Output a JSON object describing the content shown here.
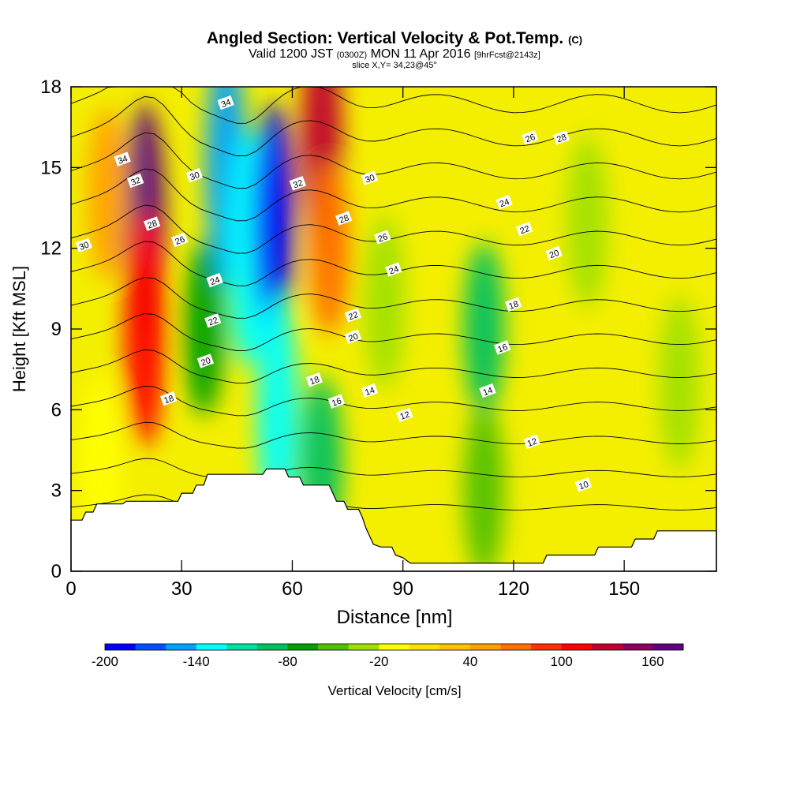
{
  "header": {
    "title": "Angled Section: Vertical Velocity & Pot.Temp.",
    "title_suffix": "(C)",
    "valid_prefix": "Valid 1200 JST",
    "valid_utc": "(0300Z)",
    "valid_date": "MON 11 Apr 2016",
    "valid_fcst": "[9hrFcst@2143z]",
    "slice": "slice X,Y= 34,23@45°"
  },
  "chart_data": {
    "type": "heatmap",
    "xlabel": "Distance [nm]",
    "ylabel": "Height [Kft MSL]",
    "xlim": [
      0,
      175
    ],
    "ylim": [
      0,
      18
    ],
    "xticks": [
      0,
      30,
      60,
      90,
      120,
      150
    ],
    "yticks": [
      0,
      3,
      6,
      9,
      12,
      15,
      18
    ],
    "colorbar": {
      "label": "Vertical Velocity [cm/s]",
      "tick_labels": [
        "-200",
        "-140",
        "-80",
        "-20",
        "40",
        "100",
        "160"
      ],
      "levels": [
        -200,
        -180,
        -160,
        -140,
        -120,
        -100,
        -80,
        -60,
        -40,
        -20,
        0,
        20,
        40,
        60,
        80,
        100,
        120,
        140,
        160,
        180
      ],
      "colors": [
        "#0000ff",
        "#0050ff",
        "#00a0ff",
        "#00ffff",
        "#00e0a0",
        "#00c060",
        "#00a000",
        "#50c000",
        "#a0e000",
        "#ffff00",
        "#ffe000",
        "#ffc000",
        "#ffa000",
        "#ff7000",
        "#ff3000",
        "#ff0000",
        "#c00030",
        "#900060",
        "#600080"
      ]
    },
    "velocity_cells": [
      {
        "x": 20,
        "y": 13,
        "value": 160
      },
      {
        "x": 20,
        "y": 9,
        "value": 110
      },
      {
        "x": 36,
        "y": 9,
        "value": -80
      },
      {
        "x": 42,
        "y": 15,
        "value": -150
      },
      {
        "x": 48,
        "y": 12,
        "value": -130
      },
      {
        "x": 55,
        "y": 13,
        "value": -200
      },
      {
        "x": 56,
        "y": 6,
        "value": -140
      },
      {
        "x": 68,
        "y": 16,
        "value": 130
      },
      {
        "x": 70,
        "y": 12,
        "value": 60
      },
      {
        "x": 68,
        "y": 4,
        "value": -90
      },
      {
        "x": 85,
        "y": 10,
        "value": -40
      },
      {
        "x": 112,
        "y": 9,
        "value": -90
      },
      {
        "x": 112,
        "y": 3,
        "value": -50
      },
      {
        "x": 140,
        "y": 13,
        "value": -40
      },
      {
        "x": 165,
        "y": 7,
        "value": -40
      },
      {
        "x": 8,
        "y": 4,
        "value": -20
      },
      {
        "x": 10,
        "y": 14,
        "value": 40
      }
    ],
    "theta_contours": {
      "levels": [
        10,
        12,
        14,
        16,
        18,
        20,
        22,
        24,
        26,
        28,
        30,
        32,
        34
      ],
      "labels": [
        {
          "text": "34",
          "x": 14,
          "y": 15.3
        },
        {
          "text": "32",
          "x": 17.5,
          "y": 14.5
        },
        {
          "text": "30",
          "x": 33.5,
          "y": 14.7
        },
        {
          "text": "34",
          "x": 42,
          "y": 17.4
        },
        {
          "text": "32",
          "x": 61.5,
          "y": 14.4
        },
        {
          "text": "30",
          "x": 81,
          "y": 14.6
        },
        {
          "text": "28",
          "x": 22,
          "y": 12.9
        },
        {
          "text": "26",
          "x": 29.5,
          "y": 12.3
        },
        {
          "text": "24",
          "x": 39,
          "y": 10.8
        },
        {
          "text": "22",
          "x": 38.5,
          "y": 9.3
        },
        {
          "text": "20",
          "x": 36.5,
          "y": 7.8
        },
        {
          "text": "18",
          "x": 26.5,
          "y": 6.4
        },
        {
          "text": "30",
          "x": 3.5,
          "y": 12.1
        },
        {
          "text": "28",
          "x": 74,
          "y": 13.1
        },
        {
          "text": "26",
          "x": 84.5,
          "y": 12.4
        },
        {
          "text": "24",
          "x": 87.5,
          "y": 11.2
        },
        {
          "text": "22",
          "x": 76.5,
          "y": 9.5
        },
        {
          "text": "20",
          "x": 76.5,
          "y": 8.7
        },
        {
          "text": "18",
          "x": 66,
          "y": 7.1
        },
        {
          "text": "16",
          "x": 72,
          "y": 6.3
        },
        {
          "text": "14",
          "x": 81,
          "y": 6.7
        },
        {
          "text": "12",
          "x": 90.5,
          "y": 5.8
        },
        {
          "text": "14",
          "x": 113,
          "y": 6.7
        },
        {
          "text": "16",
          "x": 117,
          "y": 8.3
        },
        {
          "text": "18",
          "x": 120,
          "y": 9.9
        },
        {
          "text": "20",
          "x": 131,
          "y": 11.8
        },
        {
          "text": "22",
          "x": 123,
          "y": 12.7
        },
        {
          "text": "24",
          "x": 117.5,
          "y": 13.7
        },
        {
          "text": "26",
          "x": 124.5,
          "y": 16.1
        },
        {
          "text": "28",
          "x": 133,
          "y": 16.1
        },
        {
          "text": "12",
          "x": 125,
          "y": 4.8
        },
        {
          "text": "10",
          "x": 139,
          "y": 3.2
        }
      ]
    },
    "terrain_kft": [
      [
        0,
        1.9
      ],
      [
        3,
        1.9
      ],
      [
        4,
        2.2
      ],
      [
        6,
        2.2
      ],
      [
        7,
        2.5
      ],
      [
        14,
        2.5
      ],
      [
        15,
        2.6
      ],
      [
        29,
        2.6
      ],
      [
        30,
        2.9
      ],
      [
        33,
        2.9
      ],
      [
        34,
        3.2
      ],
      [
        36,
        3.2
      ],
      [
        37,
        3.6
      ],
      [
        52,
        3.6
      ],
      [
        53,
        3.8
      ],
      [
        58,
        3.8
      ],
      [
        59,
        3.5
      ],
      [
        62,
        3.5
      ],
      [
        63,
        3.2
      ],
      [
        70,
        3.2
      ],
      [
        71,
        2.9
      ],
      [
        72,
        2.6
      ],
      [
        74,
        2.6
      ],
      [
        75,
        2.3
      ],
      [
        78,
        2.3
      ],
      [
        79,
        2.0
      ],
      [
        80,
        1.6
      ],
      [
        81,
        1.3
      ],
      [
        82,
        1.0
      ],
      [
        84,
        0.9
      ],
      [
        87,
        0.9
      ],
      [
        88,
        0.6
      ],
      [
        90,
        0.5
      ],
      [
        92,
        0.3
      ],
      [
        128,
        0.3
      ],
      [
        129,
        0.6
      ],
      [
        142,
        0.6
      ],
      [
        143,
        0.9
      ],
      [
        152,
        0.9
      ],
      [
        153,
        1.2
      ],
      [
        158,
        1.2
      ],
      [
        159,
        1.5
      ],
      [
        175,
        1.5
      ]
    ]
  }
}
